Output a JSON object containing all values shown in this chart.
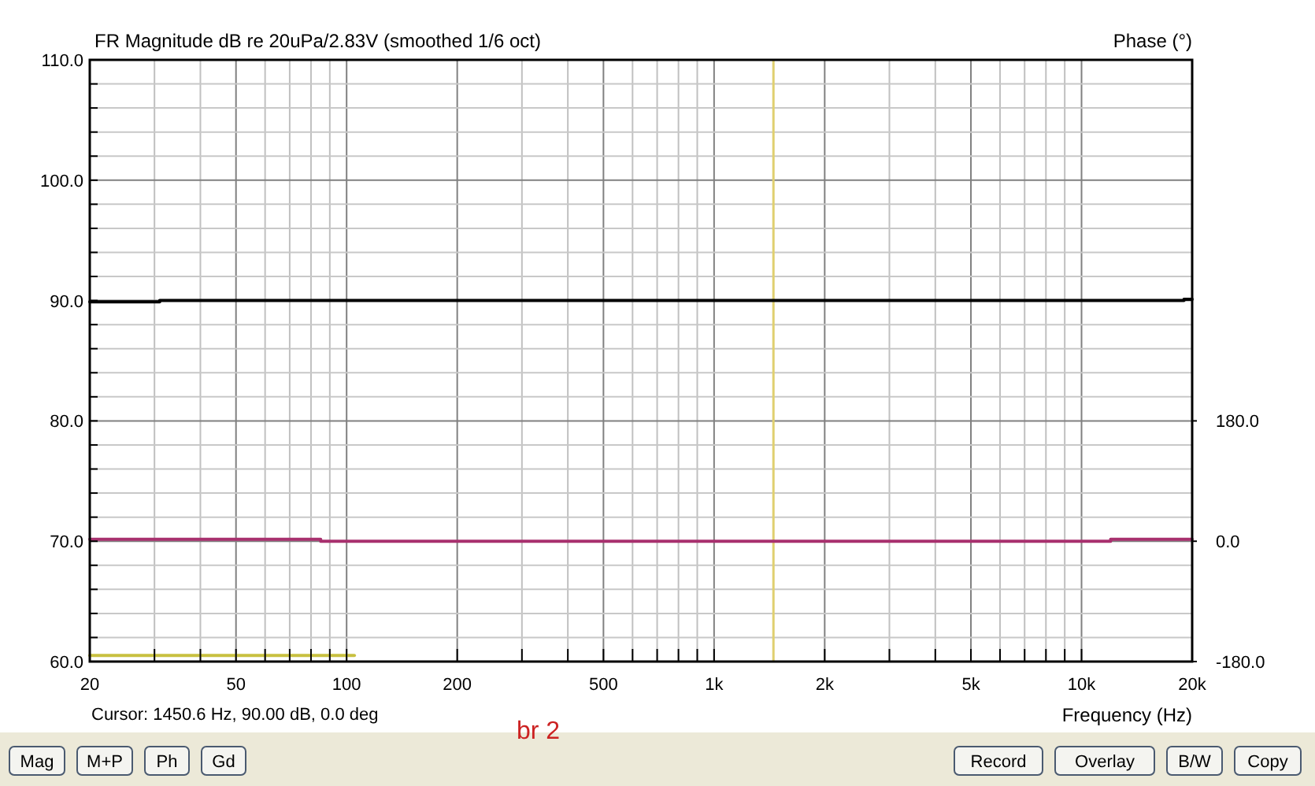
{
  "chart_data": {
    "type": "line",
    "title": "FR Magnitude dB re 20uPa/2.83V (smoothed 1/6 oct)",
    "xlabel": "Frequency (Hz)",
    "y2label": "Phase (°)",
    "log": "x",
    "grid": true,
    "line_style": "solid",
    "xlim": [
      20,
      20000
    ],
    "xticks": [
      20,
      {
        "value": 30,
        "label": null
      },
      {
        "value": 40,
        "label": null
      },
      50,
      {
        "value": 60,
        "label": null
      },
      {
        "value": 70,
        "label": null
      },
      {
        "value": 80,
        "label": null
      },
      {
        "value": 90,
        "label": null
      },
      100,
      200,
      {
        "value": 300,
        "label": null
      },
      {
        "value": 400,
        "label": null
      },
      500,
      {
        "value": 600,
        "label": null
      },
      {
        "value": 700,
        "label": null
      },
      {
        "value": 800,
        "label": null
      },
      {
        "value": 900,
        "label": null
      },
      {
        "value": 1000,
        "label": "1k"
      },
      {
        "value": 2000,
        "label": "2k"
      },
      {
        "value": 3000,
        "label": null
      },
      {
        "value": 4000,
        "label": null
      },
      {
        "value": 5000,
        "label": "5k"
      },
      {
        "value": 6000,
        "label": null
      },
      {
        "value": 7000,
        "label": null
      },
      {
        "value": 8000,
        "label": null
      },
      {
        "value": 9000,
        "label": null
      },
      {
        "value": 10000,
        "label": "10k"
      },
      {
        "value": 20000,
        "label": "20k"
      }
    ],
    "ylim": [
      60,
      110
    ],
    "yticks": [
      {
        "value": 60,
        "label": "60.0"
      },
      {
        "value": 62,
        "label": null
      },
      {
        "value": 64,
        "label": null
      },
      {
        "value": 66,
        "label": null
      },
      {
        "value": 68,
        "label": null
      },
      {
        "value": 70,
        "label": "70.0"
      },
      {
        "value": 72,
        "label": null
      },
      {
        "value": 74,
        "label": null
      },
      {
        "value": 76,
        "label": null
      },
      {
        "value": 78,
        "label": null
      },
      {
        "value": 80,
        "label": "80.0"
      },
      {
        "value": 82,
        "label": null
      },
      {
        "value": 84,
        "label": null
      },
      {
        "value": 86,
        "label": null
      },
      {
        "value": 88,
        "label": null
      },
      {
        "value": 90,
        "label": "90.0"
      },
      {
        "value": 92,
        "label": null
      },
      {
        "value": 94,
        "label": null
      },
      {
        "value": 96,
        "label": null
      },
      {
        "value": 98,
        "label": null
      },
      {
        "value": 100,
        "label": "100.0"
      },
      {
        "value": 102,
        "label": null
      },
      {
        "value": 104,
        "label": null
      },
      {
        "value": 106,
        "label": null
      },
      {
        "value": 108,
        "label": null
      },
      {
        "value": 110,
        "label": "110.0"
      }
    ],
    "y2lim": [
      -180,
      720
    ],
    "y2ticks": [
      {
        "value": -180,
        "label": "-180.0"
      },
      {
        "value": 0,
        "label": "0.0"
      },
      {
        "value": 180,
        "label": "180.0"
      }
    ],
    "series": [
      {
        "color": "#000000",
        "x": [
          20,
          31,
          31,
          19000,
          19000,
          20000
        ],
        "values": [
          89.9,
          89.9,
          90,
          90,
          90.1,
          90.1
        ]
      },
      {
        "color": "#a8306e",
        "axis": "y2",
        "x": [
          20,
          85,
          85,
          12000,
          12000,
          20000
        ],
        "values": [
          3,
          3,
          0,
          0,
          3,
          3
        ]
      },
      {
        "color": "#c8c040",
        "x": [
          20,
          105
        ],
        "values": [
          60.5,
          60.5
        ]
      }
    ],
    "ref_lines": [
      {
        "axis": "x",
        "value": 1450.6,
        "color": "#e0d070"
      }
    ],
    "annotations": [
      "Cursor: 1450.6 Hz, 90.00 dB, 0.0 deg",
      "br 2",
      "Mag",
      "M+P",
      "Ph",
      "Gd",
      "Record",
      "Overlay",
      "B/W",
      "Copy"
    ]
  }
}
